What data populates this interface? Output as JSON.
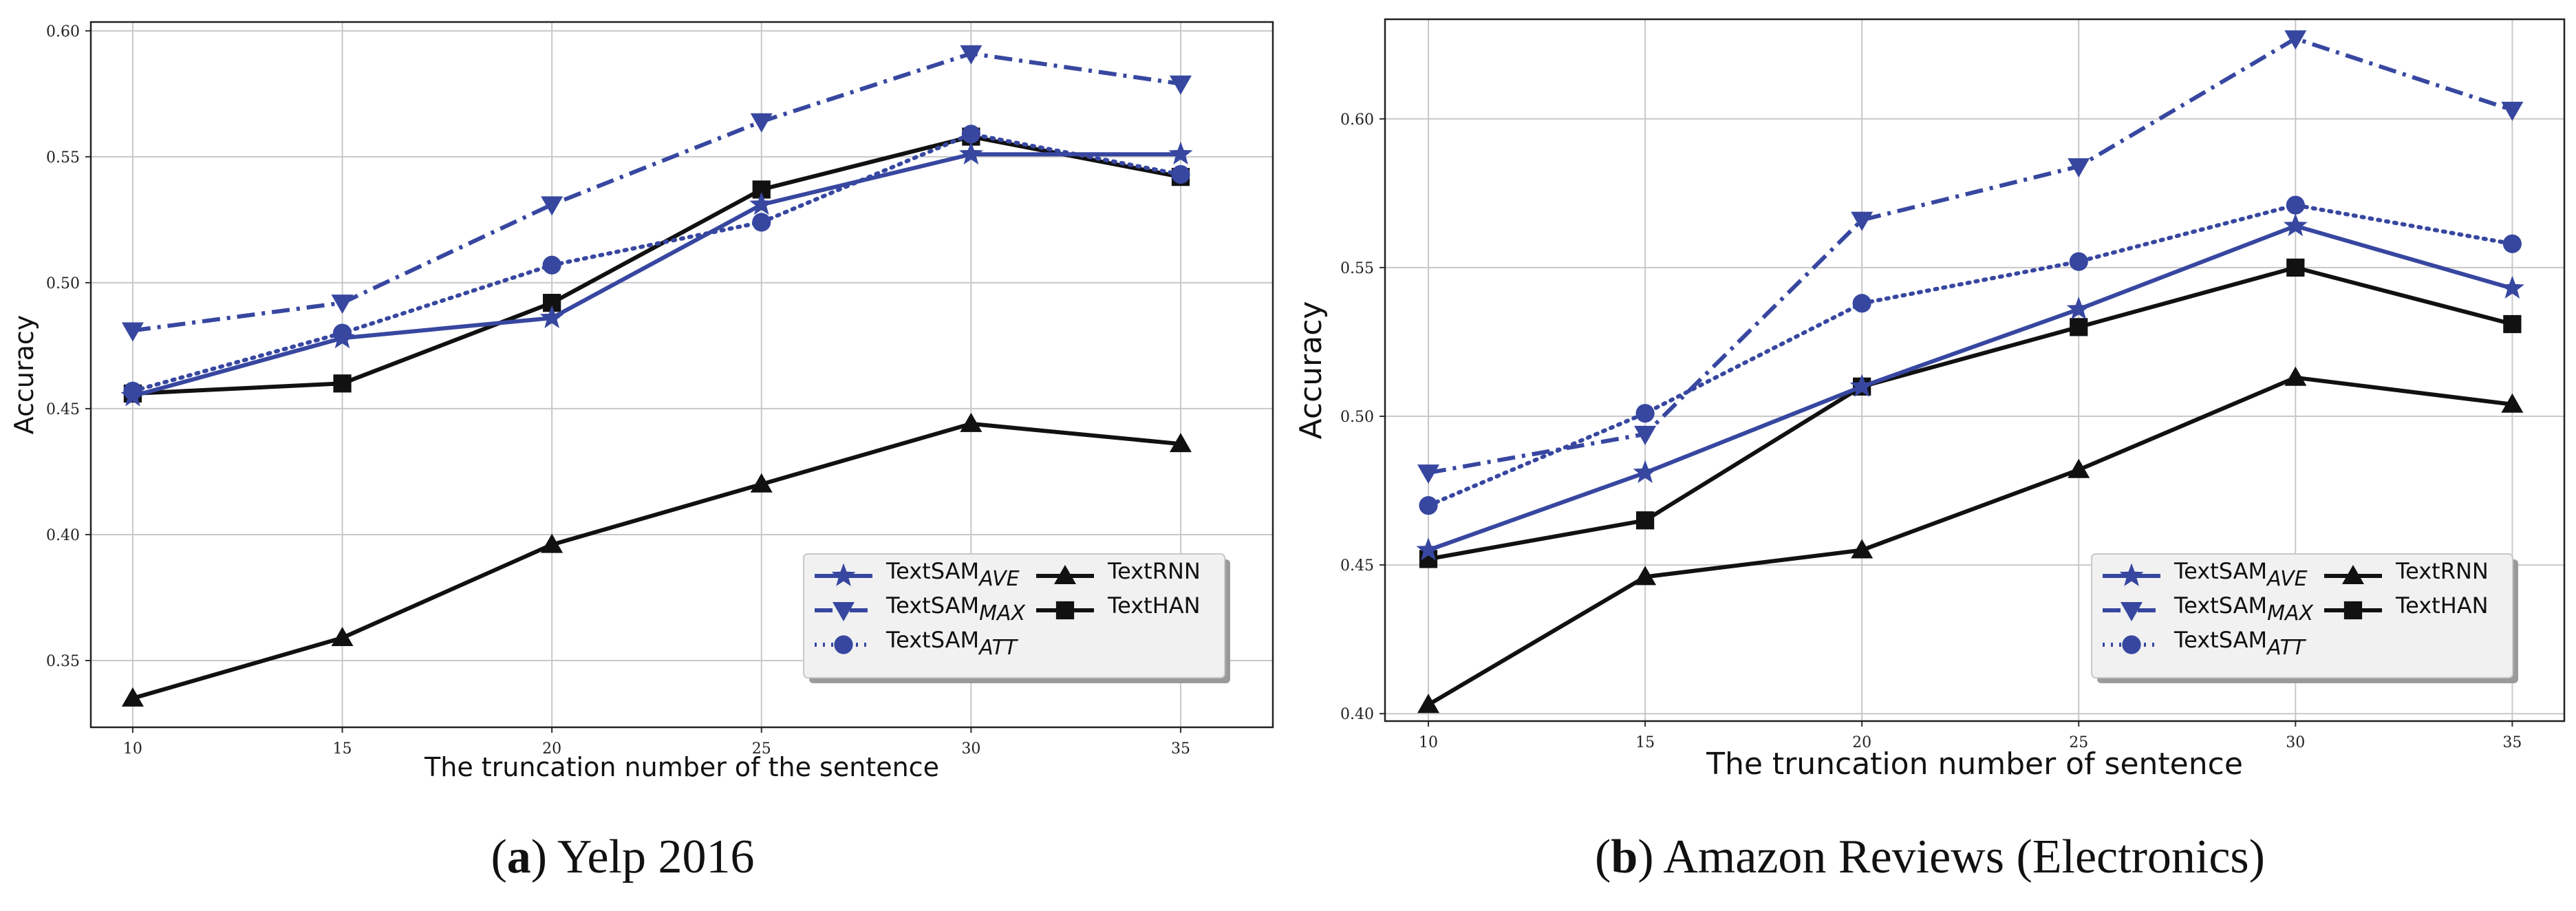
{
  "chart_data": [
    {
      "type": "line",
      "panel_id": "a",
      "caption_letter": "a",
      "caption_text": "Yelp 2016",
      "xlabel": "The truncation number of the sentence",
      "ylabel": "Accuracy",
      "x": [
        10,
        15,
        20,
        25,
        30,
        35
      ],
      "xlim": [
        9,
        37.2
      ],
      "ylim": [
        0.3235,
        0.6035
      ],
      "y_ticks": [
        0.35,
        0.4,
        0.45,
        0.5,
        0.55,
        0.6
      ],
      "y_tick_labels": [
        "0.35",
        "0.40",
        "0.45",
        "0.50",
        "0.55",
        "0.60"
      ],
      "x_tick_labels": [
        "10",
        "15",
        "20",
        "25",
        "30",
        "35"
      ],
      "grid": true,
      "legend_position": "lower-right",
      "series": [
        {
          "key": "textsam-ave",
          "name": "TextSAM",
          "sub": "AVE",
          "color": "#3747a0",
          "dash": "solid",
          "marker": "star",
          "values": [
            0.455,
            0.478,
            0.486,
            0.531,
            0.551,
            0.551
          ]
        },
        {
          "key": "textsam-max",
          "name": "TextSAM",
          "sub": "MAX",
          "color": "#3747a0",
          "dash": "dashdot",
          "marker": "triangle-down",
          "values": [
            0.481,
            0.492,
            0.531,
            0.564,
            0.591,
            0.579
          ]
        },
        {
          "key": "textsam-att",
          "name": "TextSAM",
          "sub": "ATT",
          "color": "#3747a0",
          "dash": "dotted",
          "marker": "circle",
          "values": [
            0.457,
            0.48,
            0.507,
            0.524,
            0.559,
            0.543
          ]
        },
        {
          "key": "textrnn",
          "name": "TextRNN",
          "sub": "",
          "color": "#111111",
          "dash": "solid",
          "marker": "triangle-up",
          "values": [
            0.335,
            0.359,
            0.396,
            0.42,
            0.444,
            0.436
          ]
        },
        {
          "key": "texthan",
          "name": "TextHAN",
          "sub": "",
          "color": "#111111",
          "dash": "solid",
          "marker": "square",
          "values": [
            0.456,
            0.46,
            0.492,
            0.537,
            0.558,
            0.542
          ]
        }
      ]
    },
    {
      "type": "line",
      "panel_id": "b",
      "caption_letter": "b",
      "caption_text": "Amazon Reviews (Electronics)",
      "xlabel": "The truncation number of sentence",
      "ylabel": "Accuracy",
      "x": [
        10,
        15,
        20,
        25,
        30,
        35
      ],
      "xlim": [
        9,
        36.2
      ],
      "ylim": [
        0.3975,
        0.6335
      ],
      "y_ticks": [
        0.4,
        0.45,
        0.5,
        0.55,
        0.6
      ],
      "y_tick_labels": [
        "0.40",
        "0.45",
        "0.50",
        "0.55",
        "0.60"
      ],
      "x_tick_labels": [
        "10",
        "15",
        "20",
        "25",
        "30",
        "35"
      ],
      "grid": true,
      "legend_position": "lower-right",
      "series": [
        {
          "key": "textsam-ave",
          "name": "TextSAM",
          "sub": "AVE",
          "color": "#3747a0",
          "dash": "solid",
          "marker": "star",
          "values": [
            0.455,
            0.481,
            0.51,
            0.536,
            0.564,
            0.543
          ]
        },
        {
          "key": "textsam-max",
          "name": "TextSAM",
          "sub": "MAX",
          "color": "#3747a0",
          "dash": "dashdot",
          "marker": "triangle-down",
          "values": [
            0.481,
            0.494,
            0.566,
            0.584,
            0.627,
            0.603
          ]
        },
        {
          "key": "textsam-att",
          "name": "TextSAM",
          "sub": "ATT",
          "color": "#3747a0",
          "dash": "dotted",
          "marker": "circle",
          "values": [
            0.47,
            0.501,
            0.538,
            0.552,
            0.571,
            0.558
          ]
        },
        {
          "key": "textrnn",
          "name": "TextRNN",
          "sub": "",
          "color": "#111111",
          "dash": "solid",
          "marker": "triangle-up",
          "values": [
            0.403,
            0.446,
            0.455,
            0.482,
            0.513,
            0.504
          ]
        },
        {
          "key": "texthan",
          "name": "TextHAN",
          "sub": "",
          "color": "#111111",
          "dash": "solid",
          "marker": "square",
          "values": [
            0.452,
            0.465,
            0.51,
            0.53,
            0.55,
            0.531
          ]
        }
      ]
    }
  ]
}
